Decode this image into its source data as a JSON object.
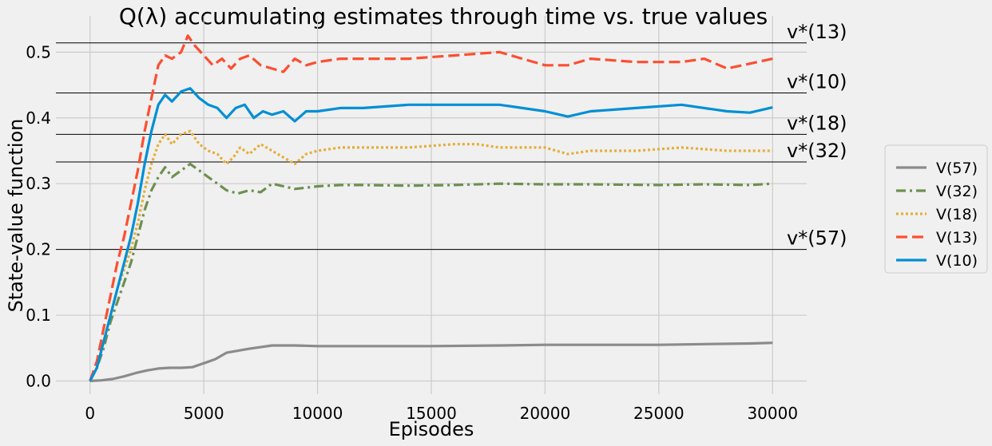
{
  "chart_data": {
    "type": "line",
    "title": "Q(λ) accumulating estimates through time vs. true values",
    "xlabel": "Episodes",
    "ylabel": "State-value function",
    "xlim": [
      -1500,
      31500
    ],
    "ylim": [
      -0.02,
      0.555
    ],
    "xticks": [
      0,
      5000,
      10000,
      15000,
      20000,
      25000,
      30000
    ],
    "xtick_labels": [
      "0",
      "5000",
      "10000",
      "15000",
      "20000",
      "25000",
      "30000"
    ],
    "yticks": [
      0.0,
      0.1,
      0.2,
      0.3,
      0.4,
      0.5
    ],
    "ytick_labels": [
      "0.0",
      "0.1",
      "0.2",
      "0.3",
      "0.4",
      "0.5"
    ],
    "grid": true,
    "legend_position": "outside-right",
    "reference_lines": [
      {
        "label": "v*(13)",
        "value": 0.514
      },
      {
        "label": "v*(10)",
        "value": 0.438
      },
      {
        "label": "v*(18)",
        "value": 0.375
      },
      {
        "label": "v*(32)",
        "value": 0.333
      },
      {
        "label": "v*(57)",
        "value": 0.2
      }
    ],
    "series": [
      {
        "name": "V(57)",
        "color": "#8b8b8b",
        "dash": "solid",
        "x": [
          0,
          500,
          1000,
          1500,
          2000,
          2500,
          3000,
          3500,
          4000,
          4500,
          5000,
          5500,
          6000,
          7000,
          8000,
          9000,
          10000,
          12000,
          15000,
          18000,
          20000,
          22000,
          25000,
          27000,
          29000,
          30000
        ],
        "y": [
          0,
          0.001,
          0.003,
          0.007,
          0.012,
          0.016,
          0.019,
          0.02,
          0.02,
          0.021,
          0.027,
          0.033,
          0.043,
          0.049,
          0.054,
          0.054,
          0.053,
          0.053,
          0.053,
          0.054,
          0.055,
          0.055,
          0.055,
          0.056,
          0.057,
          0.058
        ]
      },
      {
        "name": "V(32)",
        "color": "#6d904f",
        "dash": "dashdot",
        "x": [
          0,
          300,
          600,
          900,
          1200,
          1500,
          1800,
          2100,
          2400,
          2700,
          3000,
          3300,
          3600,
          4000,
          4400,
          4800,
          5200,
          5600,
          6000,
          6500,
          7000,
          7500,
          8000,
          8500,
          9000,
          9500,
          10000,
          11000,
          12000,
          14000,
          16000,
          18000,
          20000,
          22000,
          25000,
          27000,
          29000,
          30000
        ],
        "y": [
          0,
          0.02,
          0.05,
          0.09,
          0.12,
          0.15,
          0.18,
          0.22,
          0.26,
          0.29,
          0.31,
          0.325,
          0.31,
          0.32,
          0.33,
          0.32,
          0.31,
          0.3,
          0.29,
          0.285,
          0.29,
          0.287,
          0.3,
          0.296,
          0.292,
          0.294,
          0.296,
          0.298,
          0.298,
          0.297,
          0.298,
          0.3,
          0.299,
          0.299,
          0.298,
          0.299,
          0.298,
          0.3
        ]
      },
      {
        "name": "V(18)",
        "color": "#e5ae38",
        "dash": "dotted",
        "x": [
          0,
          300,
          600,
          900,
          1200,
          1500,
          1800,
          2100,
          2400,
          2700,
          3000,
          3300,
          3600,
          4000,
          4400,
          4800,
          5200,
          5600,
          6000,
          6300,
          6600,
          7000,
          7500,
          8000,
          8500,
          9000,
          9500,
          10000,
          11000,
          12000,
          14000,
          16000,
          17000,
          18000,
          20000,
          21000,
          22000,
          24000,
          26000,
          28000,
          30000
        ],
        "y": [
          0,
          0.02,
          0.06,
          0.1,
          0.14,
          0.17,
          0.2,
          0.24,
          0.29,
          0.33,
          0.36,
          0.375,
          0.36,
          0.375,
          0.38,
          0.36,
          0.35,
          0.345,
          0.33,
          0.34,
          0.355,
          0.345,
          0.36,
          0.35,
          0.34,
          0.33,
          0.345,
          0.35,
          0.355,
          0.355,
          0.355,
          0.36,
          0.36,
          0.355,
          0.355,
          0.345,
          0.35,
          0.35,
          0.355,
          0.35,
          0.35
        ]
      },
      {
        "name": "V(13)",
        "color": "#fc4f30",
        "dash": "dashed",
        "x": [
          0,
          300,
          600,
          900,
          1200,
          1500,
          1800,
          2100,
          2400,
          2700,
          3000,
          3300,
          3600,
          4000,
          4300,
          4600,
          5000,
          5400,
          5800,
          6200,
          6600,
          7000,
          7500,
          8000,
          8500,
          9000,
          9500,
          10000,
          11000,
          12000,
          14000,
          16000,
          18000,
          19000,
          20000,
          21000,
          22000,
          24000,
          26000,
          27000,
          28000,
          30000
        ],
        "y": [
          0,
          0.03,
          0.08,
          0.13,
          0.18,
          0.22,
          0.27,
          0.32,
          0.38,
          0.43,
          0.48,
          0.495,
          0.49,
          0.5,
          0.525,
          0.51,
          0.495,
          0.48,
          0.49,
          0.475,
          0.49,
          0.495,
          0.48,
          0.475,
          0.47,
          0.49,
          0.48,
          0.485,
          0.49,
          0.49,
          0.49,
          0.495,
          0.5,
          0.49,
          0.48,
          0.48,
          0.49,
          0.485,
          0.485,
          0.49,
          0.475,
          0.49
        ]
      },
      {
        "name": "V(10)",
        "color": "#008fd5",
        "dash": "solid",
        "x": [
          0,
          300,
          600,
          900,
          1200,
          1500,
          1800,
          2100,
          2400,
          2700,
          3000,
          3300,
          3600,
          4000,
          4400,
          4800,
          5200,
          5600,
          6000,
          6400,
          6800,
          7200,
          7600,
          8000,
          8500,
          9000,
          9500,
          10000,
          11000,
          12000,
          14000,
          16000,
          18000,
          20000,
          21000,
          22000,
          24000,
          26000,
          28000,
          29000,
          30000
        ],
        "y": [
          0,
          0.02,
          0.06,
          0.1,
          0.14,
          0.18,
          0.22,
          0.27,
          0.33,
          0.38,
          0.42,
          0.435,
          0.425,
          0.44,
          0.445,
          0.43,
          0.42,
          0.415,
          0.4,
          0.415,
          0.42,
          0.4,
          0.41,
          0.405,
          0.41,
          0.395,
          0.41,
          0.41,
          0.415,
          0.415,
          0.42,
          0.42,
          0.42,
          0.41,
          0.402,
          0.41,
          0.415,
          0.42,
          0.41,
          0.408,
          0.416
        ]
      }
    ]
  }
}
